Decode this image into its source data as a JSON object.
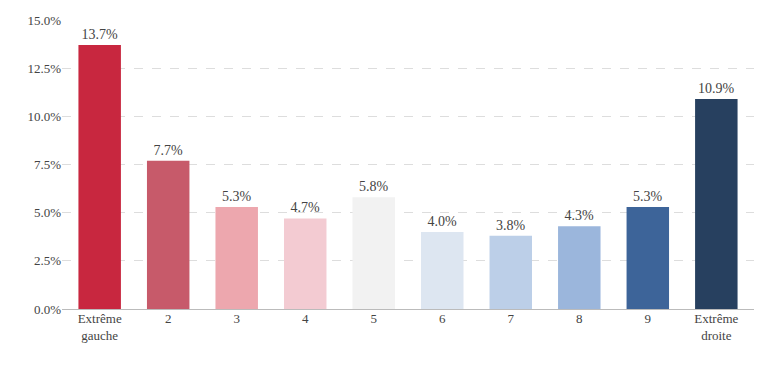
{
  "chart_data": {
    "type": "bar",
    "categories": [
      "Extrême gauche",
      "2",
      "3",
      "4",
      "5",
      "6",
      "7",
      "8",
      "9",
      "Extrême droite"
    ],
    "values": [
      13.7,
      7.7,
      5.3,
      4.7,
      5.8,
      4.0,
      3.8,
      4.3,
      5.3,
      10.9
    ],
    "value_labels": [
      "13.7%",
      "7.7%",
      "5.3%",
      "4.7%",
      "5.8%",
      "4.0%",
      "3.8%",
      "4.3%",
      "5.3%",
      "10.9%"
    ],
    "colors": [
      "#c8273f",
      "#c75a6a",
      "#eda7ae",
      "#f3cbd2",
      "#f2f2f2",
      "#dde6f1",
      "#bccfe8",
      "#9bb6dc",
      "#3d6499",
      "#27405f"
    ],
    "data_labels": true,
    "ylim": [
      0,
      15
    ],
    "yticks": [
      {
        "value": 0,
        "label": "0.0%"
      },
      {
        "value": 2.5,
        "label": "2.5%"
      },
      {
        "value": 5,
        "label": "5.0%"
      },
      {
        "value": 7.5,
        "label": "7.5%"
      },
      {
        "value": 10,
        "label": "10.0%"
      },
      {
        "value": 12.5,
        "label": "12.5%"
      },
      {
        "value": 15,
        "label": "15.0%"
      }
    ],
    "grid": true
  }
}
